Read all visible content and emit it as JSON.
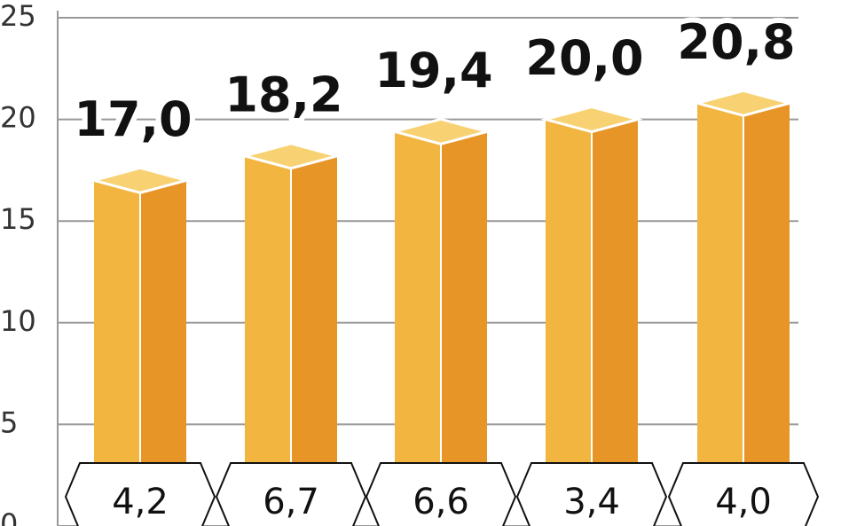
{
  "chart_data": {
    "type": "bar3d",
    "values": [
      17.0,
      18.2,
      19.4,
      20.0,
      20.8
    ],
    "value_labels": [
      "17,0",
      "18,2",
      "19,4",
      "20,0",
      "20,8"
    ],
    "bottom_labels": [
      "4,2",
      "6,7",
      "6,6",
      "3,4",
      "4,0"
    ],
    "colors": {
      "front": "#f2b540",
      "side": "#e89528",
      "top": "#f8d272"
    },
    "ylim": [
      0,
      25
    ],
    "yticks": [
      0,
      5,
      10,
      15,
      20,
      25
    ],
    "grid": true
  }
}
